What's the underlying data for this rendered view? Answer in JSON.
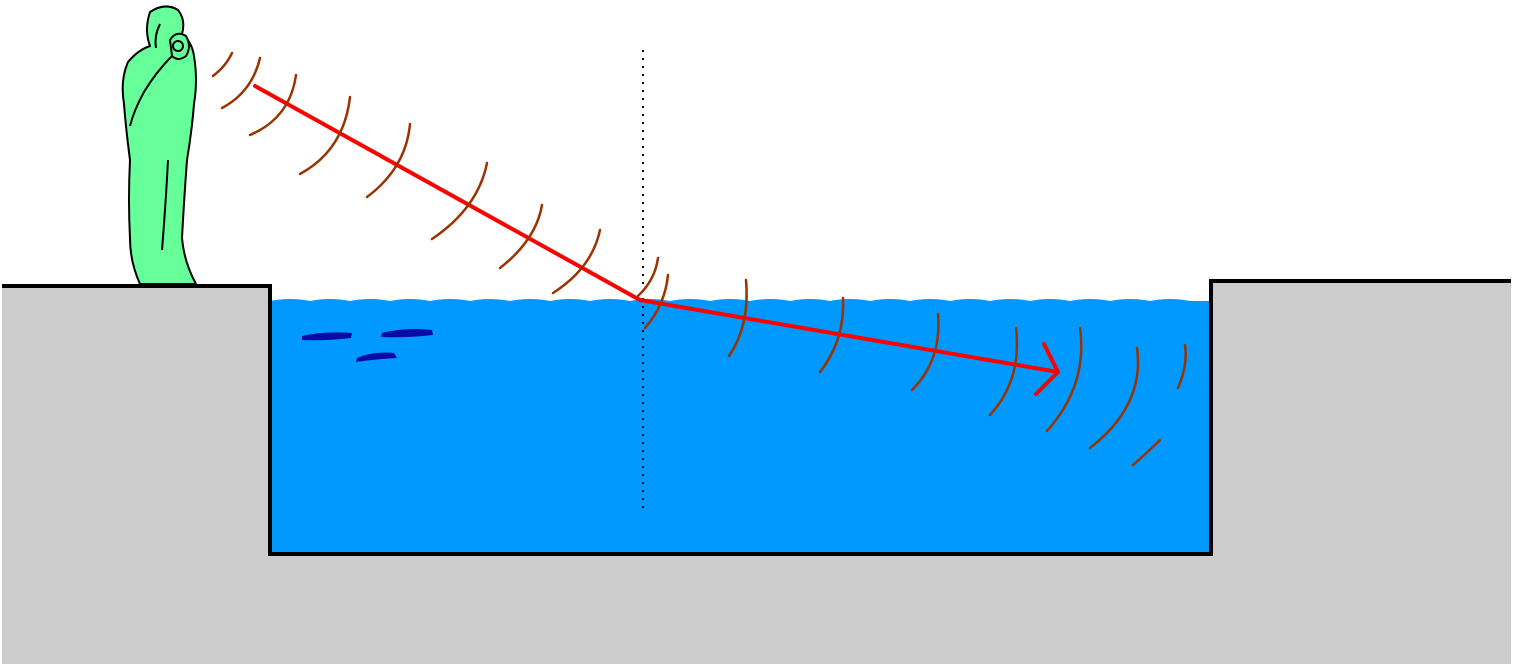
{
  "diagram": {
    "subject": "refraction-of-sound-waves-entering-water",
    "colors": {
      "background": "#ffffff",
      "ground": "#cccccc",
      "ground_outline": "#000000",
      "water": "#0099ff",
      "water_streaks": "#0a0aa8",
      "person": "#66ff99",
      "person_outline": "#000000",
      "ray": "#ff0000",
      "wavefronts": "#993300",
      "normal_line": "#000000"
    },
    "icons": {
      "person": "person-shouting-icon",
      "arrowhead": "arrowhead-icon"
    },
    "normal_line_style": "dotted",
    "wavefront_count_in_air": 8,
    "wavefront_count_in_water": 9
  }
}
